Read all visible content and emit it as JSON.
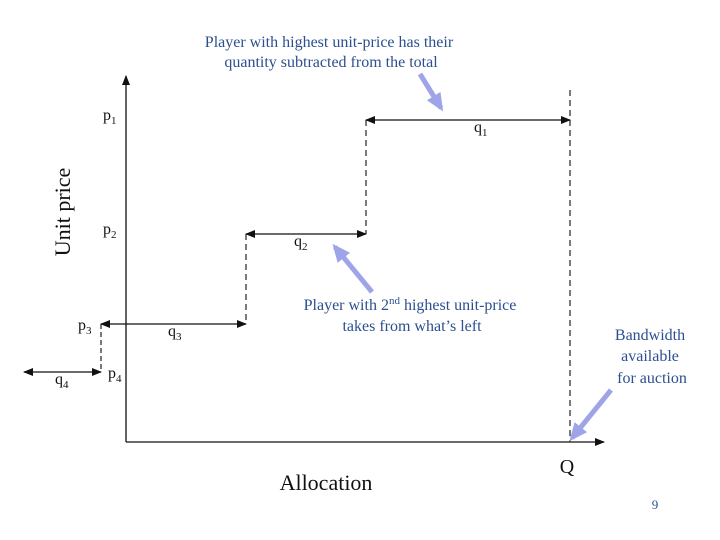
{
  "axes": {
    "y_label": "Unit price",
    "x_label": "Allocation",
    "total_label": "Q"
  },
  "prices": {
    "p1": {
      "base": "p",
      "sub": "1"
    },
    "p2": {
      "base": "p",
      "sub": "2"
    },
    "p3": {
      "base": "p",
      "sub": "3"
    },
    "p4": {
      "base": "p",
      "sub": "4"
    }
  },
  "quantities": {
    "q1": {
      "base": "q",
      "sub": "1"
    },
    "q2": {
      "base": "q",
      "sub": "2"
    },
    "q3": {
      "base": "q",
      "sub": "3"
    },
    "q4": {
      "base": "q",
      "sub": "4"
    }
  },
  "annotations": {
    "top": {
      "line1": "Player with highest unit-price has their",
      "line2": "quantity subtracted from the total"
    },
    "middle": {
      "line1_pre": "Player with 2",
      "line1_sup": "nd",
      "line1_post": " highest unit-price",
      "line2": "takes from what’s left"
    },
    "right": {
      "line1": "Bandwidth",
      "line2": "available",
      "line3": "for auction"
    }
  },
  "page_number": "9",
  "colors": {
    "annotation_text": "#2b4f8f",
    "callout_arrow": "#9fa3e8",
    "lines": "#111111"
  }
}
